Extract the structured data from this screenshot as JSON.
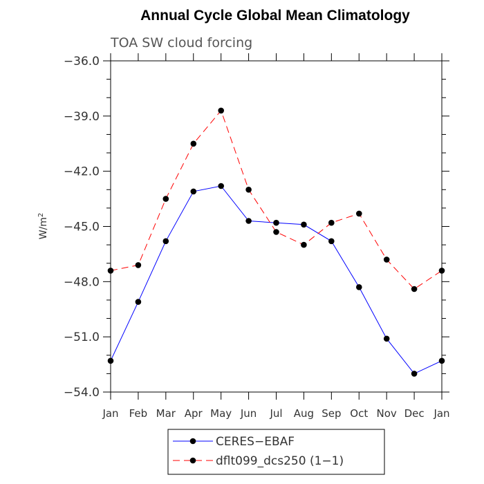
{
  "chart_data": {
    "type": "line",
    "title": "Annual Cycle Global Mean Climatology",
    "subtitle": "TOA SW cloud forcing",
    "ylabel": "W/m",
    "ylabel_sup": "2",
    "xlabel": "",
    "categories": [
      "Jan",
      "Feb",
      "Mar",
      "Apr",
      "May",
      "Jun",
      "Jul",
      "Aug",
      "Sep",
      "Oct",
      "Nov",
      "Dec",
      "Jan"
    ],
    "ylim": [
      -54.0,
      -36.0
    ],
    "yticks": [
      -36.0,
      -39.0,
      -42.0,
      -45.0,
      -48.0,
      -51.0,
      -54.0
    ],
    "ytick_labels": [
      "−36.0",
      "−39.0",
      "−42.0",
      "−45.0",
      "−48.0",
      "−51.0",
      "−54.0"
    ],
    "series": [
      {
        "name": "CERES−EBAF",
        "color": "#0000ff",
        "dash": "solid",
        "values": [
          -52.3,
          -49.1,
          -45.8,
          -43.1,
          -42.8,
          -44.7,
          -44.8,
          -44.9,
          -45.8,
          -48.3,
          -51.1,
          -53.0,
          -52.3
        ]
      },
      {
        "name": "dflt099_dcs250 (1−1)",
        "color": "#ff0000",
        "dash": "dashed",
        "values": [
          -47.4,
          -47.1,
          -43.5,
          -40.5,
          -38.7,
          -43.0,
          -45.3,
          -46.0,
          -44.8,
          -44.3,
          -46.8,
          -48.4,
          -47.4
        ]
      }
    ]
  }
}
